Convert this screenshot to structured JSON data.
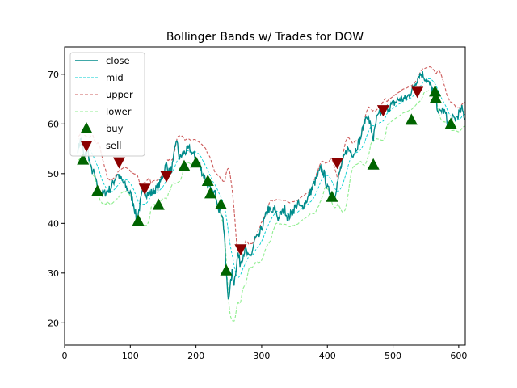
{
  "chart_data": {
    "type": "line",
    "title": "Bollinger Bands w/ Trades for DOW",
    "xlabel": "",
    "ylabel": "",
    "xlim": [
      0,
      610
    ],
    "ylim": [
      15.5,
      75.5
    ],
    "grid": false,
    "legend_position": "top-left",
    "x_ticks": [
      0,
      100,
      200,
      300,
      400,
      500,
      600
    ],
    "y_ticks": [
      20,
      30,
      40,
      50,
      60,
      70
    ],
    "colors": {
      "close": "#008b8b",
      "mid": "#00ced1",
      "upper": "#cd5c5c",
      "lower": "#90ee90",
      "buy": "#006400",
      "sell": "#8b0000"
    },
    "legend": [
      {
        "label": "close",
        "kind": "line"
      },
      {
        "label": "mid",
        "kind": "line"
      },
      {
        "label": "upper",
        "kind": "line"
      },
      {
        "label": "lower",
        "kind": "line"
      },
      {
        "label": "buy",
        "kind": "marker"
      },
      {
        "label": "sell",
        "kind": "marker"
      }
    ],
    "close_anchors": [
      [
        20,
        55
      ],
      [
        25,
        57
      ],
      [
        30,
        53
      ],
      [
        35,
        55
      ],
      [
        40,
        51
      ],
      [
        45,
        50
      ],
      [
        50,
        47
      ],
      [
        55,
        46
      ],
      [
        60,
        46
      ],
      [
        70,
        47
      ],
      [
        80,
        50
      ],
      [
        90,
        48
      ],
      [
        100,
        46
      ],
      [
        105,
        44
      ],
      [
        110,
        40.5
      ],
      [
        115,
        44
      ],
      [
        120,
        47
      ],
      [
        125,
        46
      ],
      [
        130,
        46
      ],
      [
        140,
        47
      ],
      [
        145,
        48
      ],
      [
        150,
        50
      ],
      [
        155,
        52
      ],
      [
        160,
        50
      ],
      [
        165,
        52
      ],
      [
        170,
        57
      ],
      [
        175,
        53
      ],
      [
        180,
        54
      ],
      [
        190,
        55
      ],
      [
        195,
        54
      ],
      [
        200,
        53
      ],
      [
        205,
        52
      ],
      [
        210,
        50
      ],
      [
        215,
        49
      ],
      [
        220,
        47
      ],
      [
        225,
        46
      ],
      [
        230,
        46
      ],
      [
        235,
        43
      ],
      [
        240,
        42
      ],
      [
        243,
        38
      ],
      [
        246,
        30
      ],
      [
        249,
        25
      ],
      [
        252,
        27
      ],
      [
        255,
        30
      ],
      [
        258,
        28
      ],
      [
        261,
        31
      ],
      [
        264,
        34
      ],
      [
        267,
        32
      ],
      [
        270,
        33
      ],
      [
        275,
        35
      ],
      [
        280,
        33
      ],
      [
        285,
        34
      ],
      [
        290,
        37
      ],
      [
        295,
        37
      ],
      [
        300,
        39
      ],
      [
        305,
        41
      ],
      [
        310,
        43
      ],
      [
        315,
        42
      ],
      [
        320,
        43
      ],
      [
        325,
        41
      ],
      [
        330,
        42
      ],
      [
        335,
        43
      ],
      [
        340,
        41
      ],
      [
        345,
        42
      ],
      [
        350,
        43
      ],
      [
        355,
        44
      ],
      [
        360,
        43
      ],
      [
        370,
        45
      ],
      [
        380,
        48
      ],
      [
        390,
        51
      ],
      [
        395,
        50
      ],
      [
        400,
        47
      ],
      [
        405,
        46
      ],
      [
        410,
        45
      ],
      [
        415,
        48
      ],
      [
        420,
        51
      ],
      [
        430,
        55
      ],
      [
        440,
        54
      ],
      [
        450,
        57
      ],
      [
        460,
        62
      ],
      [
        465,
        60
      ],
      [
        470,
        57
      ],
      [
        475,
        61
      ],
      [
        480,
        62
      ],
      [
        490,
        63
      ],
      [
        500,
        64
      ],
      [
        510,
        65
      ],
      [
        520,
        65
      ],
      [
        530,
        67
      ],
      [
        540,
        70
      ],
      [
        545,
        70
      ],
      [
        550,
        69
      ],
      [
        555,
        68
      ],
      [
        560,
        67
      ],
      [
        565,
        65
      ],
      [
        570,
        62
      ],
      [
        575,
        63
      ],
      [
        580,
        62
      ],
      [
        585,
        59
      ],
      [
        590,
        61
      ],
      [
        595,
        61
      ],
      [
        600,
        62
      ],
      [
        605,
        63
      ],
      [
        610,
        61
      ]
    ],
    "buy": [
      {
        "x": 28,
        "y": 52.8
      },
      {
        "x": 50,
        "y": 46.5
      },
      {
        "x": 112,
        "y": 40.5
      },
      {
        "x": 143,
        "y": 43.7
      },
      {
        "x": 182,
        "y": 51.5
      },
      {
        "x": 200,
        "y": 52.2
      },
      {
        "x": 218,
        "y": 48.5
      },
      {
        "x": 222,
        "y": 46
      },
      {
        "x": 238,
        "y": 43.8
      },
      {
        "x": 246,
        "y": 30.5
      },
      {
        "x": 407,
        "y": 45.3
      },
      {
        "x": 470,
        "y": 51.8
      },
      {
        "x": 528,
        "y": 60.8
      },
      {
        "x": 564,
        "y": 66.5
      },
      {
        "x": 565,
        "y": 65.2
      },
      {
        "x": 588,
        "y": 60
      }
    ],
    "sell": [
      {
        "x": 83,
        "y": 52.3
      },
      {
        "x": 122,
        "y": 47
      },
      {
        "x": 155,
        "y": 49.5
      },
      {
        "x": 268,
        "y": 34.8
      },
      {
        "x": 415,
        "y": 52.2
      },
      {
        "x": 485,
        "y": 62.8
      },
      {
        "x": 537,
        "y": 66.5
      }
    ]
  }
}
